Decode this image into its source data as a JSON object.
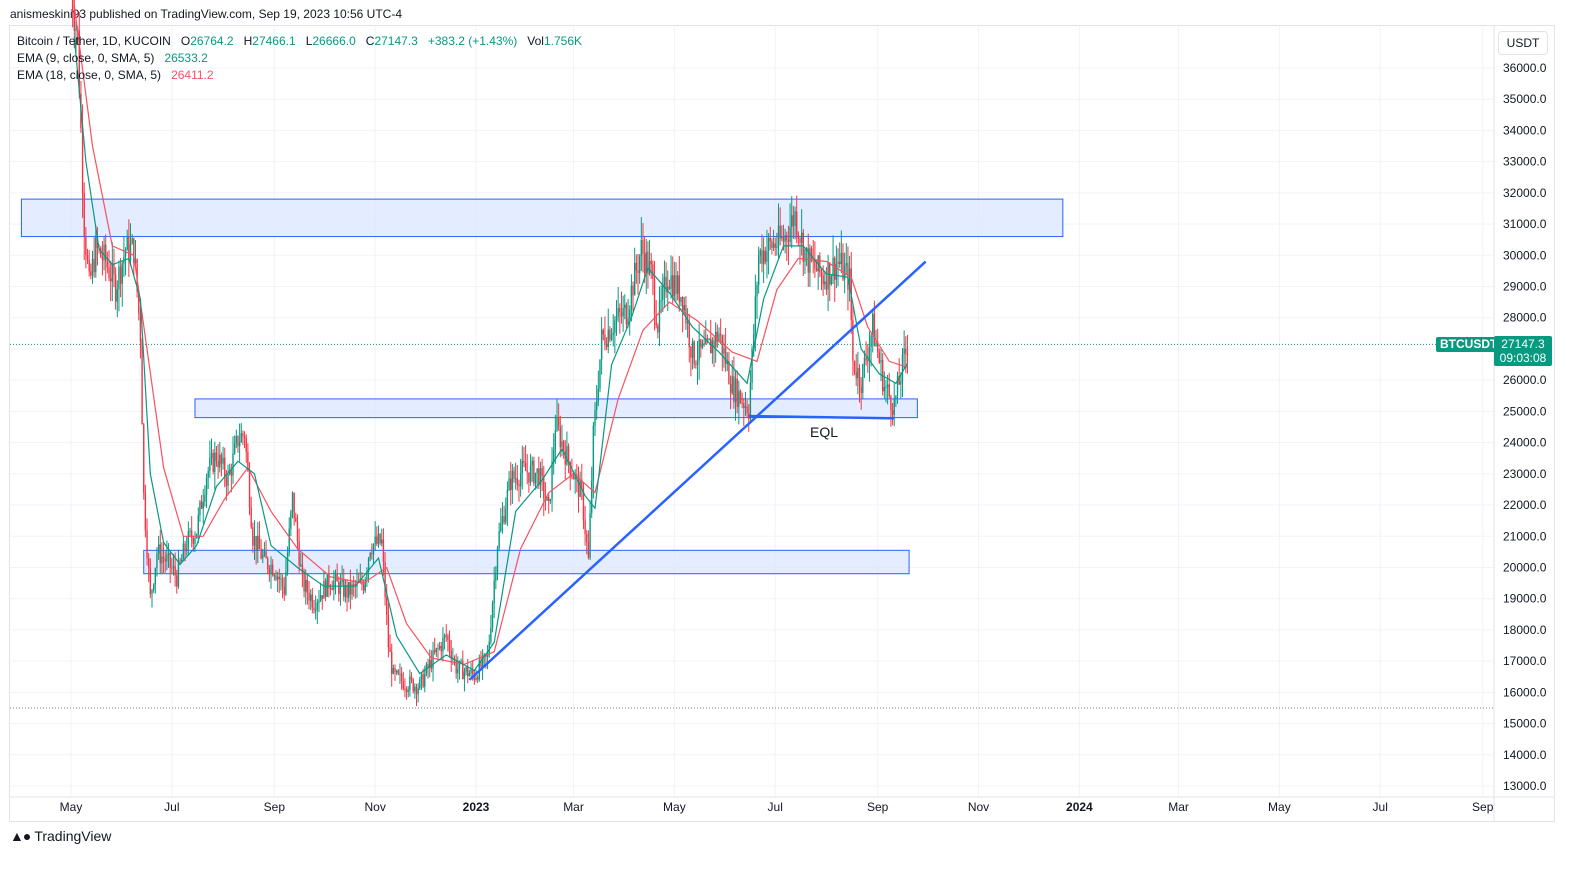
{
  "header": {
    "publish_info": "anismeskini93 published on TradingView.com, Sep 19, 2023 10:56 UTC-4"
  },
  "legend": {
    "symbol": "Bitcoin / Tether, 1D, KUCOIN",
    "o_label": "O",
    "o_value": "26764.2",
    "h_label": "H",
    "h_value": "27466.1",
    "l_label": "L",
    "l_value": "26666.0",
    "c_label": "C",
    "c_value": "27147.3",
    "change": "+383.2 (+1.43%)",
    "vol_label": "Vol",
    "vol_value": "1.756K",
    "ema9_label": "EMA (9, close, 0, SMA, 5)",
    "ema9_value": "26533.2",
    "ema18_label": "EMA (18, close, 0, SMA, 5)",
    "ema18_value": "26411.2"
  },
  "currency_button": "USDT",
  "price_tag": {
    "symbol": "BTCUSDT",
    "price": "27147.3",
    "countdown": "09:03:08"
  },
  "annotation_eql": "EQL",
  "footer": {
    "logo_text": "TradingView"
  },
  "colors": {
    "up": "#089981",
    "down": "#f23645",
    "ema9": "#089981",
    "ema18": "#f7525f",
    "trendline": "#2962ff",
    "zone_fill": "#dbe6ff",
    "zone_border": "#2962ff"
  },
  "chart_data": {
    "type": "candlestick",
    "y_ticks": [
      36000,
      35000,
      34000,
      33000,
      32000,
      31000,
      30000,
      29000,
      28000,
      27000,
      26000,
      25000,
      24000,
      23000,
      22000,
      21000,
      20000,
      19000,
      18000,
      17000,
      16000,
      15000,
      14000,
      13000
    ],
    "y_tick_labels": [
      "36000.0",
      "35000.0",
      "34000.0",
      "33000.0",
      "32000.0",
      "31000.0",
      "30000.0",
      "29000.0",
      "28000.0",
      "27000.0",
      "26000.0",
      "25000.0",
      "24000.0",
      "23000.0",
      "22000.0",
      "21000.0",
      "20000.0",
      "19000.0",
      "18000.0",
      "17000.0",
      "16000.0",
      "15000.0",
      "14000.0",
      "13000.0"
    ],
    "ylim": [
      12600,
      37100
    ],
    "x_ticks": [
      {
        "label": "May",
        "date": "2022-05-01"
      },
      {
        "label": "Jul",
        "date": "2022-07-01"
      },
      {
        "label": "Sep",
        "date": "2022-09-01"
      },
      {
        "label": "Nov",
        "date": "2022-11-01"
      },
      {
        "label": "2023",
        "date": "2023-01-01",
        "bold": true
      },
      {
        "label": "Mar",
        "date": "2023-03-01"
      },
      {
        "label": "May",
        "date": "2023-05-01"
      },
      {
        "label": "Jul",
        "date": "2023-07-01"
      },
      {
        "label": "Sep",
        "date": "2023-09-01"
      },
      {
        "label": "Nov",
        "date": "2023-11-01"
      },
      {
        "label": "2024",
        "date": "2024-01-01",
        "bold": true
      },
      {
        "label": "Mar",
        "date": "2024-03-01"
      },
      {
        "label": "May",
        "date": "2024-05-01"
      },
      {
        "label": "Jul",
        "date": "2024-07-01"
      },
      {
        "label": "Sep",
        "date": "2024-09-01"
      }
    ],
    "price_path": [
      [
        "2022-05-01",
        38500
      ],
      [
        "2022-05-05",
        37000
      ],
      [
        "2022-05-09",
        31000
      ],
      [
        "2022-05-12",
        29000
      ],
      [
        "2022-05-16",
        30200
      ],
      [
        "2022-05-22",
        29800
      ],
      [
        "2022-05-28",
        29000
      ],
      [
        "2022-06-03",
        30200
      ],
      [
        "2022-06-08",
        30200
      ],
      [
        "2022-06-12",
        27500
      ],
      [
        "2022-06-14",
        22300
      ],
      [
        "2022-06-18",
        19000
      ],
      [
        "2022-06-22",
        20500
      ],
      [
        "2022-06-28",
        20200
      ],
      [
        "2022-07-04",
        19700
      ],
      [
        "2022-07-10",
        20800
      ],
      [
        "2022-07-16",
        21200
      ],
      [
        "2022-07-22",
        23000
      ],
      [
        "2022-07-28",
        23600
      ],
      [
        "2022-08-04",
        22800
      ],
      [
        "2022-08-10",
        24100
      ],
      [
        "2022-08-14",
        24300
      ],
      [
        "2022-08-19",
        21000
      ],
      [
        "2022-08-26",
        20200
      ],
      [
        "2022-09-01",
        20000
      ],
      [
        "2022-09-07",
        19300
      ],
      [
        "2022-09-12",
        22200
      ],
      [
        "2022-09-18",
        19500
      ],
      [
        "2022-09-25",
        18900
      ],
      [
        "2022-10-05",
        19600
      ],
      [
        "2022-10-15",
        19200
      ],
      [
        "2022-10-25",
        19500
      ],
      [
        "2022-10-29",
        20700
      ],
      [
        "2022-11-05",
        20800
      ],
      [
        "2022-11-09",
        17500
      ],
      [
        "2022-11-12",
        16500
      ],
      [
        "2022-11-20",
        16300
      ],
      [
        "2022-11-28",
        16200
      ],
      [
        "2022-12-05",
        17000
      ],
      [
        "2022-12-14",
        17800
      ],
      [
        "2022-12-20",
        16800
      ],
      [
        "2022-12-31",
        16550
      ],
      [
        "2023-01-08",
        17100
      ],
      [
        "2023-01-14",
        20800
      ],
      [
        "2023-01-22",
        22800
      ],
      [
        "2023-01-30",
        23100
      ],
      [
        "2023-02-08",
        23000
      ],
      [
        "2023-02-14",
        21800
      ],
      [
        "2023-02-18",
        24600
      ],
      [
        "2023-02-26",
        23400
      ],
      [
        "2023-03-06",
        22300
      ],
      [
        "2023-03-10",
        20200
      ],
      [
        "2023-03-13",
        24200
      ],
      [
        "2023-03-18",
        27300
      ],
      [
        "2023-03-26",
        27900
      ],
      [
        "2023-04-02",
        28200
      ],
      [
        "2023-04-11",
        30200
      ],
      [
        "2023-04-17",
        29400
      ],
      [
        "2023-04-21",
        27800
      ],
      [
        "2023-04-27",
        29400
      ],
      [
        "2023-05-06",
        28700
      ],
      [
        "2023-05-12",
        26800
      ],
      [
        "2023-05-20",
        26900
      ],
      [
        "2023-05-28",
        27500
      ],
      [
        "2023-06-05",
        25800
      ],
      [
        "2023-06-15",
        25100
      ],
      [
        "2023-06-21",
        30000
      ],
      [
        "2023-06-28",
        30300
      ],
      [
        "2023-07-06",
        30500
      ],
      [
        "2023-07-13",
        31300
      ],
      [
        "2023-07-20",
        29900
      ],
      [
        "2023-07-30",
        29300
      ],
      [
        "2023-08-08",
        29800
      ],
      [
        "2023-08-15",
        29200
      ],
      [
        "2023-08-17",
        26600
      ],
      [
        "2023-08-22",
        26000
      ],
      [
        "2023-08-29",
        27700
      ],
      [
        "2023-09-05",
        25800
      ],
      [
        "2023-09-11",
        25200
      ],
      [
        "2023-09-19",
        27147
      ]
    ],
    "ema9_path": [
      [
        "2022-05-03",
        37000
      ],
      [
        "2022-05-10",
        33000
      ],
      [
        "2022-05-18",
        30200
      ],
      [
        "2022-05-26",
        29700
      ],
      [
        "2022-06-05",
        29900
      ],
      [
        "2022-06-12",
        28600
      ],
      [
        "2022-06-18",
        23000
      ],
      [
        "2022-06-26",
        20800
      ],
      [
        "2022-07-06",
        20100
      ],
      [
        "2022-07-16",
        20700
      ],
      [
        "2022-07-28",
        22600
      ],
      [
        "2022-08-10",
        23400
      ],
      [
        "2022-08-20",
        23000
      ],
      [
        "2022-08-30",
        20700
      ],
      [
        "2022-09-15",
        20000
      ],
      [
        "2022-10-01",
        19400
      ],
      [
        "2022-10-20",
        19400
      ],
      [
        "2022-11-03",
        20300
      ],
      [
        "2022-11-14",
        17800
      ],
      [
        "2022-11-28",
        16600
      ],
      [
        "2022-12-14",
        17200
      ],
      [
        "2022-12-31",
        16700
      ],
      [
        "2023-01-12",
        17600
      ],
      [
        "2023-01-25",
        21800
      ],
      [
        "2023-02-10",
        22800
      ],
      [
        "2023-02-22",
        23800
      ],
      [
        "2023-03-08",
        22300
      ],
      [
        "2023-03-14",
        21900
      ],
      [
        "2023-03-24",
        26500
      ],
      [
        "2023-04-05",
        28000
      ],
      [
        "2023-04-15",
        29600
      ],
      [
        "2023-04-28",
        28800
      ],
      [
        "2023-05-12",
        27700
      ],
      [
        "2023-05-28",
        26900
      ],
      [
        "2023-06-14",
        25900
      ],
      [
        "2023-06-24",
        28600
      ],
      [
        "2023-07-06",
        30300
      ],
      [
        "2023-07-18",
        30300
      ],
      [
        "2023-08-01",
        29400
      ],
      [
        "2023-08-14",
        29300
      ],
      [
        "2023-08-22",
        27000
      ],
      [
        "2023-09-02",
        26200
      ],
      [
        "2023-09-12",
        25900
      ],
      [
        "2023-09-19",
        26533
      ]
    ],
    "ema18_path": [
      [
        "2022-05-03",
        38000
      ],
      [
        "2022-05-14",
        33500
      ],
      [
        "2022-05-26",
        30300
      ],
      [
        "2022-06-08",
        30000
      ],
      [
        "2022-06-16",
        27000
      ],
      [
        "2022-06-26",
        23200
      ],
      [
        "2022-07-08",
        21000
      ],
      [
        "2022-07-20",
        21000
      ],
      [
        "2022-08-02",
        22200
      ],
      [
        "2022-08-16",
        23200
      ],
      [
        "2022-08-30",
        21800
      ],
      [
        "2022-09-15",
        20600
      ],
      [
        "2022-10-05",
        19700
      ],
      [
        "2022-10-25",
        19500
      ],
      [
        "2022-11-08",
        20000
      ],
      [
        "2022-11-20",
        18200
      ],
      [
        "2022-12-05",
        17100
      ],
      [
        "2022-12-25",
        16900
      ],
      [
        "2023-01-12",
        17300
      ],
      [
        "2023-01-28",
        20600
      ],
      [
        "2023-02-14",
        22400
      ],
      [
        "2023-03-01",
        23000
      ],
      [
        "2023-03-14",
        22400
      ],
      [
        "2023-03-28",
        25400
      ],
      [
        "2023-04-12",
        27600
      ],
      [
        "2023-04-28",
        28500
      ],
      [
        "2023-05-15",
        27900
      ],
      [
        "2023-06-05",
        26900
      ],
      [
        "2023-06-20",
        26600
      ],
      [
        "2023-07-02",
        28900
      ],
      [
        "2023-07-15",
        29900
      ],
      [
        "2023-08-01",
        29800
      ],
      [
        "2023-08-16",
        29300
      ],
      [
        "2023-08-26",
        27700
      ],
      [
        "2023-09-08",
        26600
      ],
      [
        "2023-09-19",
        26411
      ]
    ],
    "zones": [
      {
        "start": "2022-04-01",
        "end": "2023-12-22",
        "low": 30600,
        "high": 31800
      },
      {
        "start": "2022-07-15",
        "end": "2023-09-25",
        "low": 24800,
        "high": 25400
      },
      {
        "start": "2022-06-14",
        "end": "2023-09-20",
        "low": 19800,
        "high": 20550
      }
    ],
    "trendline": {
      "start": [
        "2022-12-28",
        16400
      ],
      "end": [
        "2023-09-30",
        29800
      ]
    },
    "eql_line": {
      "start": [
        "2023-06-15",
        24850
      ],
      "end": [
        "2023-09-11",
        24780
      ]
    },
    "last_price": 27147.3,
    "low_marker": 15500
  }
}
